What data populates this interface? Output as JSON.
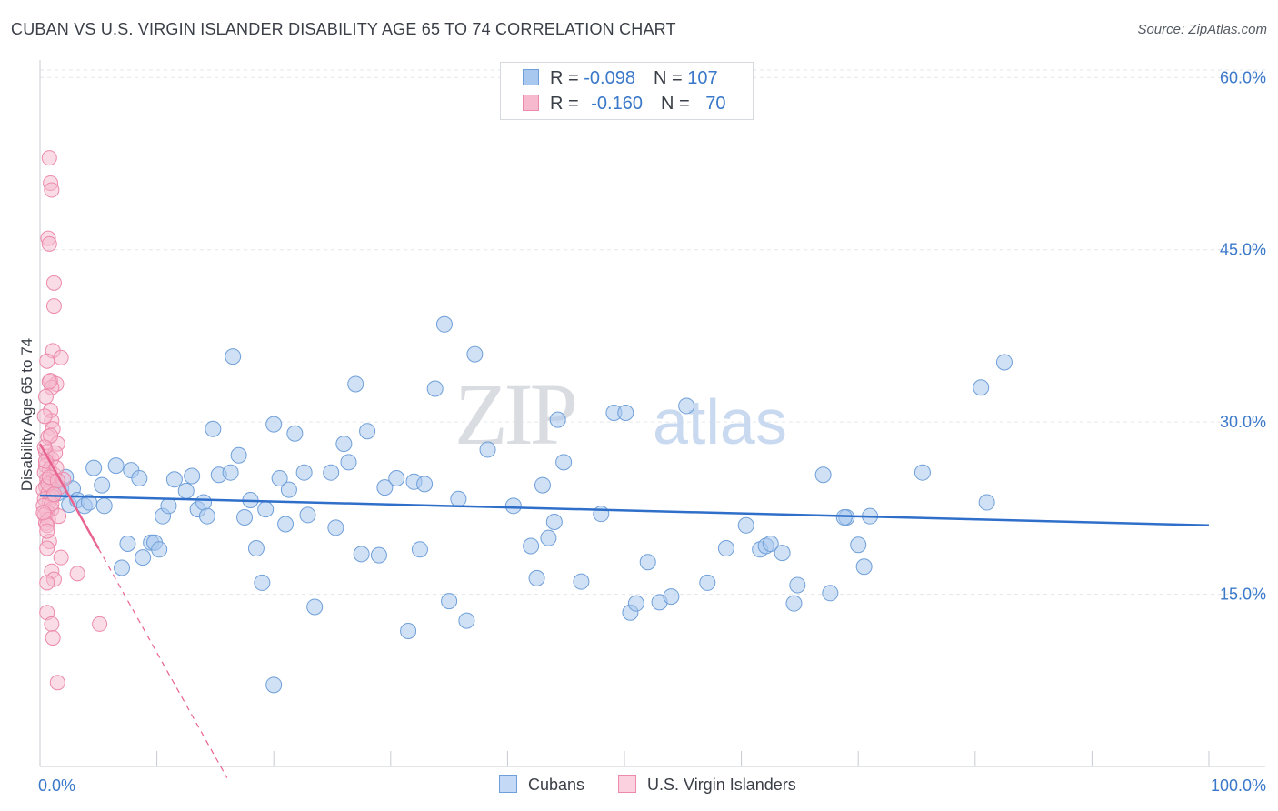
{
  "header": {
    "title": "CUBAN VS U.S. VIRGIN ISLANDER DISABILITY AGE 65 TO 74 CORRELATION CHART",
    "source": "Source: ZipAtlas.com"
  },
  "legend": {
    "rows": [
      {
        "r_label": "R =",
        "r_value": "-0.098",
        "n_label": "N =",
        "n_value": "107",
        "color": "#a9c8ef"
      },
      {
        "r_label": "R =",
        "r_value": "-0.160",
        "n_label": "N =",
        "n_value": "70",
        "color": "#f6b9cd"
      }
    ]
  },
  "watermark": {
    "part1": "ZIP",
    "part2": "atlas"
  },
  "colors": {
    "blue_fill": "#a9c8ef",
    "blue_stroke": "#6f9fd8",
    "blue_line": "#2f6fc9",
    "pink_fill": "#f6b9cd",
    "pink_stroke": "#ec8aaa",
    "pink_line": "#e8638f",
    "grid": "#e3e6ea",
    "tick_text": "#3a78c9"
  },
  "chart_data": {
    "type": "scatter",
    "title": "CUBAN VS U.S. VIRGIN ISLANDER DISABILITY AGE 65 TO 74 CORRELATION CHART",
    "xlabel": "",
    "ylabel": "Disability Age 65 to 74",
    "xlim": [
      0,
      100
    ],
    "ylim": [
      0,
      62
    ],
    "y_ticks": [
      15,
      30,
      45,
      60
    ],
    "y_tick_labels": [
      "15.0%",
      "30.0%",
      "45.0%",
      "60.0%"
    ],
    "x_tick_labels": [
      "0.0%",
      "100.0%"
    ],
    "grid": true,
    "legend_position": "top-center",
    "series": [
      {
        "name": "Cubans",
        "r": -0.098,
        "n": 107,
        "trend": {
          "x": [
            0,
            100
          ],
          "y": [
            23.6,
            21.0
          ]
        },
        "points": [
          [
            1.2,
            24.5
          ],
          [
            1.5,
            23.8
          ],
          [
            1.8,
            24.2
          ],
          [
            2.2,
            25.2
          ],
          [
            2.5,
            22.8
          ],
          [
            2.8,
            24.2
          ],
          [
            3.2,
            23.2
          ],
          [
            3.8,
            22.7
          ],
          [
            4.2,
            23.0
          ],
          [
            4.6,
            26.0
          ],
          [
            5.3,
            24.5
          ],
          [
            5.5,
            22.7
          ],
          [
            6.5,
            26.2
          ],
          [
            7.0,
            17.3
          ],
          [
            7.5,
            19.4
          ],
          [
            7.8,
            25.8
          ],
          [
            8.5,
            25.1
          ],
          [
            8.8,
            18.2
          ],
          [
            9.5,
            19.5
          ],
          [
            9.8,
            19.5
          ],
          [
            10.2,
            18.9
          ],
          [
            10.5,
            21.8
          ],
          [
            11.0,
            22.7
          ],
          [
            11.5,
            25.0
          ],
          [
            12.5,
            24.0
          ],
          [
            13.0,
            25.3
          ],
          [
            13.5,
            22.4
          ],
          [
            14.0,
            23.0
          ],
          [
            14.3,
            21.8
          ],
          [
            14.8,
            29.4
          ],
          [
            15.3,
            25.4
          ],
          [
            16.3,
            25.6
          ],
          [
            16.5,
            35.7
          ],
          [
            17.0,
            27.1
          ],
          [
            17.5,
            21.7
          ],
          [
            18.0,
            23.2
          ],
          [
            18.5,
            19.0
          ],
          [
            19.0,
            16.0
          ],
          [
            19.3,
            22.4
          ],
          [
            20.0,
            29.8
          ],
          [
            20.5,
            25.1
          ],
          [
            21.0,
            21.1
          ],
          [
            21.3,
            24.1
          ],
          [
            21.8,
            29.0
          ],
          [
            22.6,
            25.6
          ],
          [
            22.9,
            21.9
          ],
          [
            23.5,
            13.9
          ],
          [
            24.9,
            25.6
          ],
          [
            25.3,
            20.8
          ],
          [
            26.0,
            28.1
          ],
          [
            26.4,
            26.5
          ],
          [
            27.0,
            33.3
          ],
          [
            27.5,
            18.5
          ],
          [
            28.0,
            29.2
          ],
          [
            29.0,
            18.4
          ],
          [
            29.5,
            24.3
          ],
          [
            30.5,
            25.1
          ],
          [
            31.5,
            11.8
          ],
          [
            32.0,
            24.8
          ],
          [
            32.5,
            18.9
          ],
          [
            32.9,
            24.6
          ],
          [
            33.8,
            32.9
          ],
          [
            34.6,
            38.5
          ],
          [
            35.0,
            14.4
          ],
          [
            35.8,
            23.3
          ],
          [
            36.5,
            12.7
          ],
          [
            37.2,
            35.9
          ],
          [
            38.3,
            27.6
          ],
          [
            40.5,
            22.7
          ],
          [
            42.0,
            19.2
          ],
          [
            42.5,
            16.4
          ],
          [
            43.0,
            24.5
          ],
          [
            43.5,
            19.9
          ],
          [
            44.0,
            21.3
          ],
          [
            44.3,
            30.2
          ],
          [
            44.8,
            26.5
          ],
          [
            46.3,
            16.1
          ],
          [
            48.0,
            22.0
          ],
          [
            49.1,
            30.8
          ],
          [
            50.1,
            30.8
          ],
          [
            50.5,
            13.4
          ],
          [
            51.0,
            14.2
          ],
          [
            52.0,
            17.8
          ],
          [
            53.0,
            14.3
          ],
          [
            54.0,
            14.8
          ],
          [
            55.3,
            31.4
          ],
          [
            57.1,
            16.0
          ],
          [
            58.7,
            19.0
          ],
          [
            60.4,
            21.0
          ],
          [
            61.6,
            18.9
          ],
          [
            62.1,
            19.2
          ],
          [
            62.5,
            19.4
          ],
          [
            63.5,
            18.6
          ],
          [
            64.5,
            14.2
          ],
          [
            64.8,
            15.8
          ],
          [
            67.0,
            25.4
          ],
          [
            67.6,
            15.1
          ],
          [
            69.0,
            21.7
          ],
          [
            70.0,
            19.3
          ],
          [
            70.5,
            17.4
          ],
          [
            71.0,
            21.8
          ],
          [
            75.5,
            25.6
          ],
          [
            80.5,
            33.0
          ],
          [
            81.0,
            23.0
          ],
          [
            82.5,
            35.2
          ],
          [
            68.8,
            21.7
          ],
          [
            20.0,
            7.1
          ]
        ]
      },
      {
        "name": "U.S. Virgin Islanders",
        "r": -0.16,
        "n": 70,
        "trend": {
          "x": [
            0,
            5
          ],
          "y": [
            28.1,
            19.0
          ]
        },
        "trend_extended": {
          "x": [
            5,
            16
          ],
          "y": [
            19.0,
            -1.0
          ]
        },
        "points": [
          [
            0.8,
            53.0
          ],
          [
            0.9,
            50.8
          ],
          [
            1.0,
            50.2
          ],
          [
            0.7,
            46.0
          ],
          [
            0.8,
            45.5
          ],
          [
            1.2,
            42.1
          ],
          [
            1.2,
            40.1
          ],
          [
            1.1,
            36.2
          ],
          [
            1.8,
            35.6
          ],
          [
            0.6,
            35.3
          ],
          [
            0.9,
            33.6
          ],
          [
            1.4,
            33.3
          ],
          [
            1.0,
            33.0
          ],
          [
            0.5,
            32.2
          ],
          [
            0.9,
            31.0
          ],
          [
            1.0,
            30.1
          ],
          [
            1.1,
            29.4
          ],
          [
            0.7,
            28.7
          ],
          [
            1.5,
            28.1
          ],
          [
            0.5,
            27.4
          ],
          [
            0.7,
            27.0
          ],
          [
            1.0,
            26.8
          ],
          [
            0.5,
            26.2
          ],
          [
            0.8,
            25.9
          ],
          [
            0.4,
            25.6
          ],
          [
            1.2,
            25.4
          ],
          [
            0.6,
            25.0
          ],
          [
            0.9,
            24.8
          ],
          [
            0.5,
            24.4
          ],
          [
            1.6,
            24.3
          ],
          [
            0.3,
            24.1
          ],
          [
            0.7,
            23.8
          ],
          [
            1.1,
            23.5
          ],
          [
            0.4,
            23.3
          ],
          [
            0.8,
            23.0
          ],
          [
            0.3,
            22.7
          ],
          [
            1.0,
            22.4
          ],
          [
            0.6,
            22.2
          ],
          [
            0.4,
            21.9
          ],
          [
            1.6,
            21.8
          ],
          [
            0.7,
            21.5
          ],
          [
            0.5,
            21.2
          ],
          [
            0.6,
            21.0
          ],
          [
            0.8,
            19.6
          ],
          [
            0.6,
            19.0
          ],
          [
            1.8,
            18.2
          ],
          [
            1.0,
            17.0
          ],
          [
            3.2,
            16.8
          ],
          [
            1.2,
            16.3
          ],
          [
            0.6,
            16.0
          ],
          [
            0.6,
            13.4
          ],
          [
            1.0,
            12.4
          ],
          [
            5.1,
            12.4
          ],
          [
            1.1,
            11.2
          ],
          [
            1.5,
            7.3
          ],
          [
            2.0,
            25.0
          ],
          [
            0.8,
            33.5
          ],
          [
            1.3,
            27.3
          ],
          [
            0.4,
            30.5
          ],
          [
            1.0,
            22.9
          ],
          [
            0.7,
            24.6
          ],
          [
            0.5,
            26.6
          ],
          [
            1.4,
            26.0
          ],
          [
            0.9,
            28.8
          ],
          [
            0.6,
            20.5
          ],
          [
            0.3,
            22.1
          ],
          [
            1.2,
            23.7
          ],
          [
            0.8,
            25.2
          ],
          [
            1.5,
            24.9
          ],
          [
            0.4,
            27.8
          ]
        ]
      }
    ]
  },
  "bottom_legend": {
    "items": [
      {
        "label": "Cubans",
        "color": "#a9c8ef"
      },
      {
        "label": "U.S. Virgin Islanders",
        "color": "#f6b9cd"
      }
    ]
  }
}
